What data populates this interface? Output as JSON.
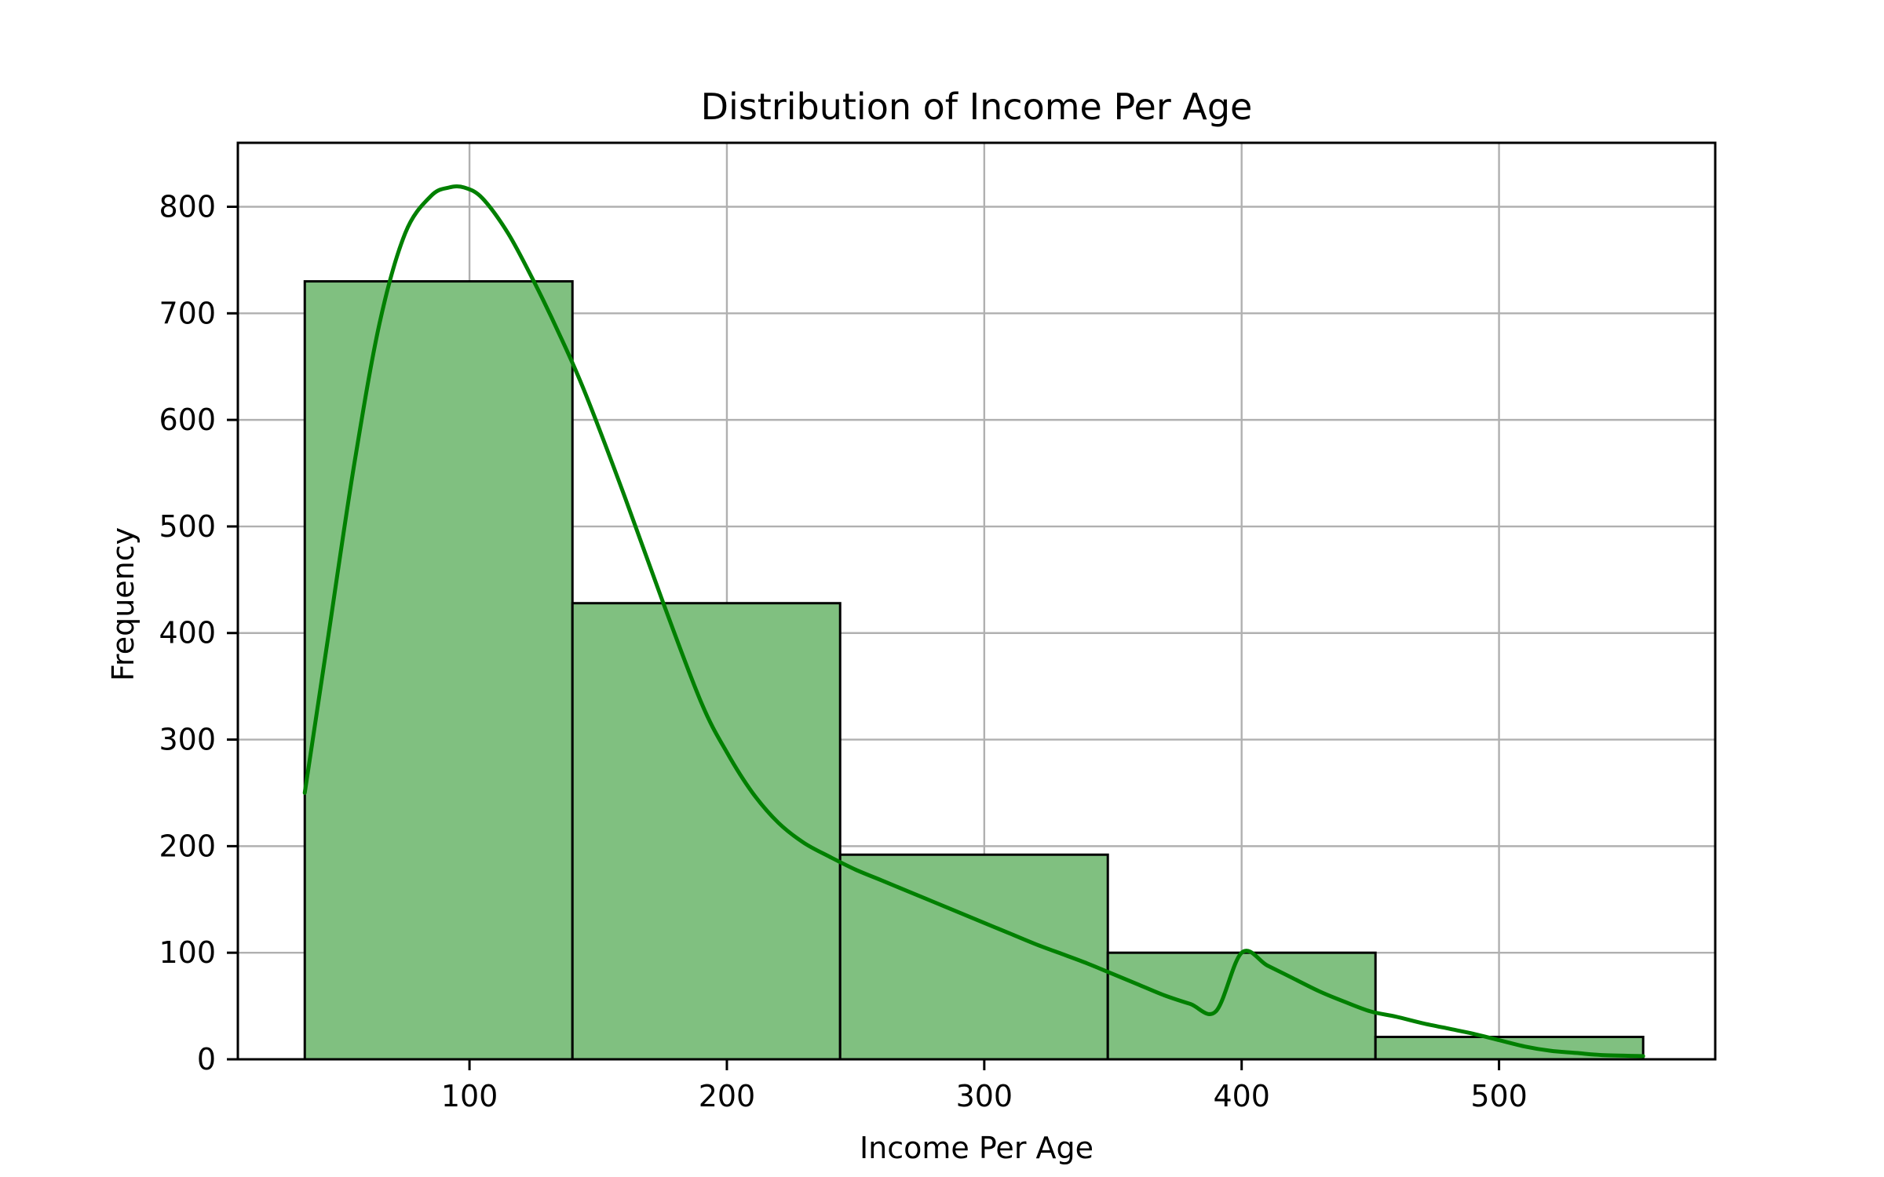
{
  "chart_data": {
    "type": "bar",
    "subtype": "histogram_with_kde",
    "title": "Distribution of Income Per Age",
    "xlabel": "Income Per Age",
    "ylabel": "Frequency",
    "xlim": [
      10,
      584
    ],
    "ylim": [
      0,
      860
    ],
    "xticks": [
      100,
      200,
      300,
      400,
      500
    ],
    "yticks": [
      0,
      100,
      200,
      300,
      400,
      500,
      600,
      700,
      800
    ],
    "grid": true,
    "bins": [
      {
        "x0": 36,
        "x1": 140,
        "value": 730
      },
      {
        "x0": 140,
        "x1": 244,
        "value": 428
      },
      {
        "x0": 244,
        "x1": 348,
        "value": 192
      },
      {
        "x0": 348,
        "x1": 452,
        "value": 100
      },
      {
        "x0": 452,
        "x1": 556,
        "value": 21
      }
    ],
    "kde": {
      "x": [
        36,
        45,
        55,
        65,
        75,
        85,
        92,
        98,
        105,
        115,
        125,
        135,
        145,
        160,
        175,
        190,
        200,
        210,
        220,
        230,
        240,
        250,
        260,
        270,
        280,
        290,
        300,
        310,
        320,
        330,
        340,
        350,
        360,
        370,
        380,
        390,
        400,
        410,
        420,
        430,
        440,
        450,
        460,
        470,
        480,
        490,
        500,
        510,
        520,
        530,
        540,
        556
      ],
      "y": [
        250,
        395,
        555,
        690,
        775,
        810,
        818,
        818,
        808,
        775,
        730,
        680,
        625,
        530,
        430,
        335,
        288,
        250,
        222,
        203,
        190,
        178,
        168,
        158,
        148,
        138,
        128,
        118,
        108,
        99,
        90,
        80,
        70,
        60,
        52,
        45,
        100,
        88,
        76,
        64,
        54,
        45,
        40,
        34,
        29,
        24,
        18,
        12,
        8,
        6,
        4,
        3
      ]
    },
    "colors": {
      "bar_fill": "#80c080",
      "bar_edge": "#000000",
      "kde_line": "#008000",
      "grid": "#b0b0b0",
      "axes": "#000000"
    }
  }
}
